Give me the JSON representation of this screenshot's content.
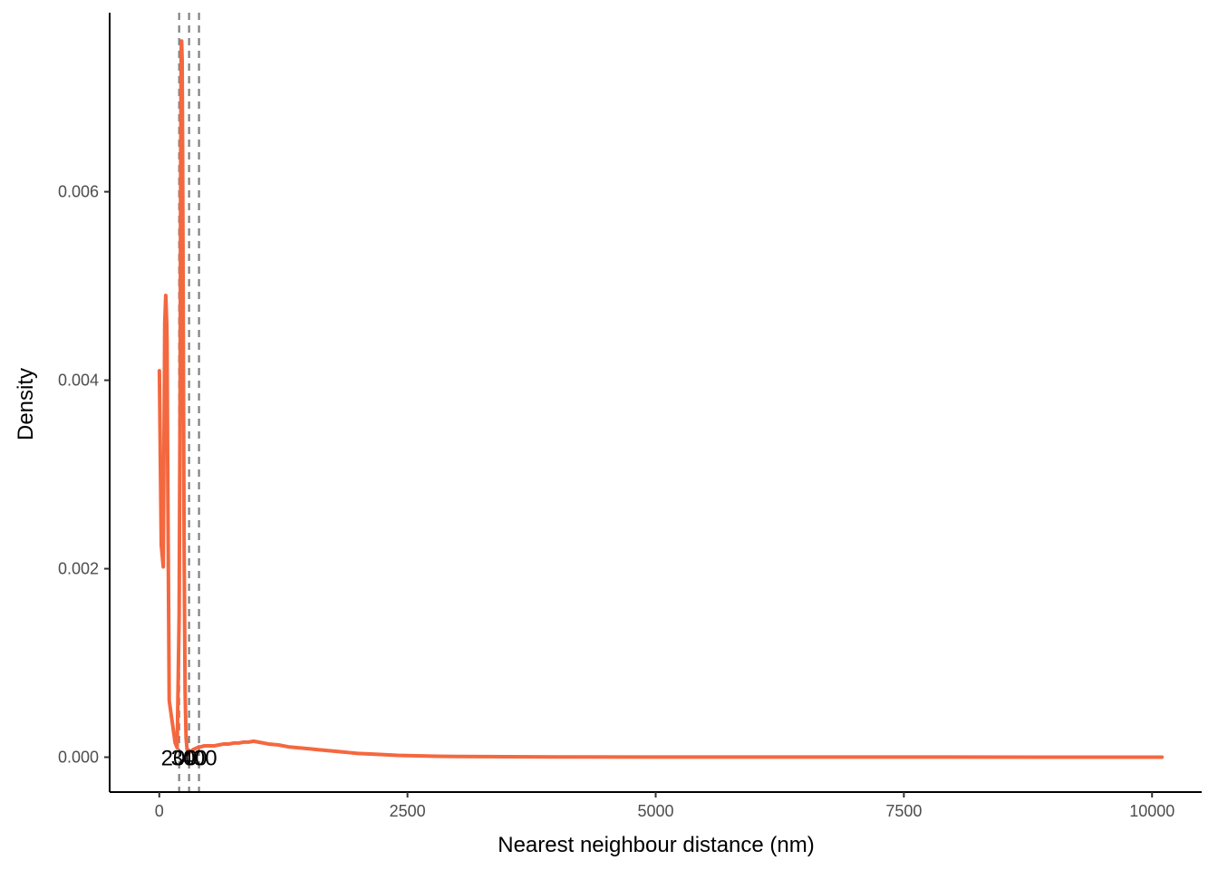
{
  "chart_data": {
    "type": "line",
    "title": "",
    "xlabel": "Nearest neighbour distance (nm)",
    "ylabel": "Density",
    "xlim": [
      -500,
      10500
    ],
    "ylim": [
      -0.00037,
      0.0079
    ],
    "x_ticks": [
      0,
      2500,
      5000,
      7500,
      10000
    ],
    "x_tick_labels": [
      "0",
      "2500",
      "5000",
      "7500",
      "10000"
    ],
    "y_ticks": [
      0,
      0.002,
      0.004,
      0.006
    ],
    "y_tick_labels": [
      "0.000",
      "0.002",
      "0.004",
      "0.006"
    ],
    "grid": false,
    "legend": "none",
    "line_color": "#F4683F",
    "reference_line_color": "#808080",
    "series": [
      {
        "x": [
          1,
          20,
          40,
          55,
          65,
          75,
          78,
          85,
          100,
          120,
          140,
          160,
          180,
          200,
          210,
          215,
          220,
          225,
          230,
          235,
          240,
          245,
          250,
          260,
          270,
          280,
          300,
          320,
          340,
          360,
          380,
          400,
          420,
          450,
          500,
          550,
          600,
          650,
          700,
          750,
          800,
          850,
          900,
          950,
          1000,
          1100,
          1200,
          1300,
          1400,
          1500,
          1600,
          1700,
          1800,
          1900,
          2000,
          2200,
          2400,
          2600,
          2800,
          3000,
          3500,
          4000,
          5000,
          6000,
          7000,
          8000,
          9000,
          10000,
          10100
        ],
        "y": [
          0.0041,
          0.00225,
          0.00202,
          0.0046,
          0.0049,
          0.0046,
          0.0044,
          0.003,
          0.0006,
          0.00045,
          0.0003,
          0.00015,
          0.0001,
          0.0015,
          0.004,
          0.0062,
          0.0075,
          0.0076,
          0.0074,
          0.0064,
          0.005,
          0.0036,
          0.0022,
          0.0007,
          0.0002,
          8e-05,
          5e-05,
          6e-05,
          8e-05,
          9e-05,
          0.0001,
          0.00011,
          0.00011,
          0.00012,
          0.00012,
          0.00012,
          0.00013,
          0.00014,
          0.00014,
          0.00015,
          0.00015,
          0.00016,
          0.00016,
          0.00017,
          0.00016,
          0.00014,
          0.00013,
          0.00011,
          0.0001,
          9e-05,
          8e-05,
          7e-05,
          6e-05,
          5e-05,
          4e-05,
          3e-05,
          2e-05,
          1.5e-05,
          1e-05,
          8e-06,
          5e-06,
          3e-06,
          2e-06,
          1e-06,
          1e-06,
          1e-06,
          5e-07,
          3e-07,
          2e-07
        ]
      }
    ],
    "reference_lines": [
      {
        "x": 200,
        "label": "200"
      },
      {
        "x": 300,
        "label": "300"
      },
      {
        "x": 400,
        "label": "400"
      }
    ]
  }
}
